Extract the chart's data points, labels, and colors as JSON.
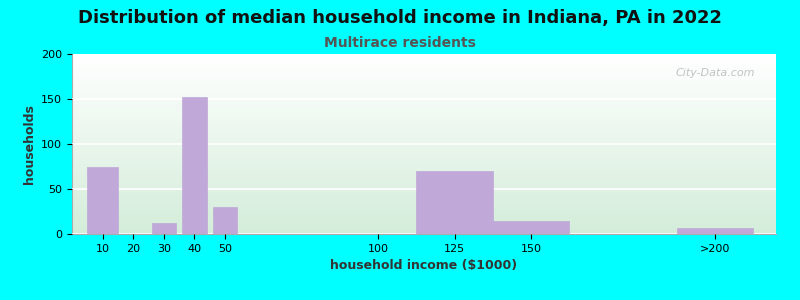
{
  "title": "Distribution of median household income in Indiana, PA in 2022",
  "subtitle": "Multirace residents",
  "xlabel": "household income ($1000)",
  "ylabel": "households",
  "background_color": "#00FFFF",
  "bar_color": "#c0a8d8",
  "bar_edge_color": "#b090cc",
  "categories": [
    "10",
    "20",
    "30",
    "40",
    "50",
    "100",
    "125",
    "150",
    ">200"
  ],
  "x_numeric": [
    10,
    20,
    30,
    40,
    50,
    100,
    125,
    150,
    210
  ],
  "bar_widths": [
    10,
    8,
    8,
    8,
    8,
    8,
    25,
    25,
    25
  ],
  "values": [
    75,
    0,
    12,
    152,
    30,
    0,
    70,
    14,
    7
  ],
  "xlim": [
    0,
    230
  ],
  "ylim": [
    0,
    200
  ],
  "yticks": [
    0,
    50,
    100,
    150,
    200
  ],
  "xtick_positions": [
    10,
    20,
    30,
    40,
    50,
    100,
    125,
    150,
    210
  ],
  "title_fontsize": 13,
  "subtitle_fontsize": 10,
  "subtitle_color": "#555555",
  "axis_label_fontsize": 9,
  "tick_fontsize": 8,
  "watermark": "City-Data.com"
}
